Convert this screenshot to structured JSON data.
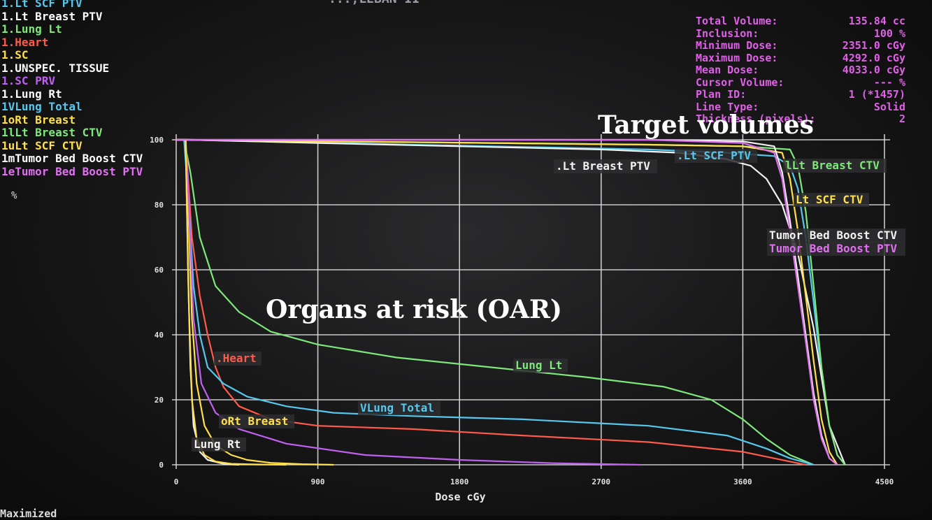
{
  "header": {
    "title_fragment": "...,LEBAN II"
  },
  "legend": {
    "items": [
      {
        "label": "1.Lt SCF PTV",
        "color": "#56c8ee"
      },
      {
        "label": "1.Lt Breast PTV",
        "color": "#ffffff"
      },
      {
        "label": "1.Lung Lt",
        "color": "#7ee87a"
      },
      {
        "label": "1.Heart",
        "color": "#ff5a4a"
      },
      {
        "label": "1.SC",
        "color": "#ffe04a"
      },
      {
        "label": "1.UNSPEC. TISSUE",
        "color": "#ffffff"
      },
      {
        "label": "1.SC PRV",
        "color": "#c060f0"
      },
      {
        "label": "1.Lung Rt",
        "color": "#ffffff"
      },
      {
        "label": "1VLung Total",
        "color": "#56c8ee"
      },
      {
        "label": "1oRt Breast",
        "color": "#ffe04a"
      },
      {
        "label": "1lLt Breast CTV",
        "color": "#7ee87a"
      },
      {
        "label": "1uLt SCF CTV",
        "color": "#ffe04a"
      },
      {
        "label": "1mTumor Bed Boost CTV",
        "color": "#ffffff"
      },
      {
        "label": "1eTumor Bed Boost PTV",
        "color": "#e070f0"
      }
    ]
  },
  "unit_symbol": "%",
  "info": {
    "rows": [
      {
        "key": "Total Volume:",
        "value": "135.84 cc"
      },
      {
        "key": "Inclusion:",
        "value": "100 %"
      },
      {
        "key": "Minimum Dose:",
        "value": "2351.0 cGy"
      },
      {
        "key": "Maximum Dose:",
        "value": "4292.0 cGy"
      },
      {
        "key": "Mean Dose:",
        "value": "4033.0 cGy"
      },
      {
        "key": "Cursor Volume:",
        "value": "--- %"
      },
      {
        "key": "Plan ID:",
        "value": "1 (*1457)"
      },
      {
        "key": "Line Type:",
        "value": "Solid"
      },
      {
        "key": "Thickness (pixels):",
        "value": "2"
      }
    ]
  },
  "overlays": {
    "target": "Target volumes",
    "oar": "Organs at risk (OAR)"
  },
  "status_text": "Maximized",
  "colors": {
    "grid": "#dcdcdc",
    "lt_scf_ptv": "#56c8ee",
    "lt_breast_ptv": "#f2f2f2",
    "lung_lt": "#7ee87a",
    "heart": "#ff5a4a",
    "sc": "#ffe04a",
    "sc_prv": "#c060f0",
    "lung_rt": "#f2f2f2",
    "lung_total": "#56c8ee",
    "rt_breast": "#ffe04a",
    "lt_breast_ctv": "#7ee87a",
    "lt_scf_ctv": "#ffe04a",
    "tbb_ctv": "#f2f2f2",
    "tbb_ptv": "#e070f0"
  },
  "chart_data": {
    "type": "line",
    "xlabel": "Dose cGy",
    "ylabel": "%",
    "xlim": [
      0,
      4500
    ],
    "ylim": [
      0,
      100
    ],
    "xticks": [
      0,
      900,
      1800,
      2700,
      3600,
      4500
    ],
    "yticks": [
      0,
      20,
      40,
      60,
      80,
      100
    ],
    "grid": true,
    "series": [
      {
        "name": "Lt SCF PTV",
        "label": ".Lt SCF PTV",
        "color": "#56c8ee",
        "x": [
          0,
          80,
          1000,
          2000,
          3000,
          3500,
          3800,
          3900,
          3950,
          4000,
          4050,
          4100,
          4150,
          4200,
          4250
        ],
        "y": [
          100,
          100,
          99,
          98,
          97,
          96,
          95,
          92,
          85,
          70,
          50,
          28,
          12,
          3,
          0
        ]
      },
      {
        "name": "Lt Breast PTV",
        "label": ".Lt Breast PTV",
        "color": "#f2f2f2",
        "x": [
          0,
          80,
          900,
          1800,
          2700,
          3200,
          3500,
          3650,
          3750,
          3850,
          3950,
          4050,
          4150,
          4250
        ],
        "y": [
          100,
          100,
          99,
          98,
          97,
          96,
          94,
          92,
          88,
          80,
          65,
          42,
          12,
          0
        ]
      },
      {
        "name": "Lung Lt",
        "label": "Lung Lt",
        "color": "#7ee87a",
        "x": [
          0,
          50,
          90,
          150,
          250,
          400,
          600,
          900,
          1400,
          2000,
          2600,
          3100,
          3400,
          3600,
          3750,
          3900,
          4050
        ],
        "y": [
          100,
          100,
          90,
          70,
          55,
          47,
          41,
          37,
          33,
          30,
          27,
          24,
          20,
          14,
          8,
          3,
          0
        ]
      },
      {
        "name": "Heart",
        "label": ".Heart",
        "color": "#ff5a4a",
        "x": [
          0,
          60,
          100,
          150,
          200,
          250,
          300,
          400,
          600,
          900,
          1500,
          2200,
          3000,
          3600,
          3900,
          4000
        ],
        "y": [
          100,
          100,
          70,
          52,
          40,
          30,
          24,
          18,
          14,
          12,
          11,
          9,
          7,
          4,
          1,
          0
        ]
      },
      {
        "name": "Lung Total",
        "label": "VLung Total",
        "color": "#56c8ee",
        "x": [
          0,
          50,
          80,
          110,
          150,
          200,
          300,
          450,
          700,
          1000,
          1500,
          2200,
          3000,
          3500,
          3750,
          3900,
          4050
        ],
        "y": [
          100,
          100,
          80,
          55,
          40,
          30,
          25,
          21,
          18,
          16,
          15,
          14,
          12,
          9,
          5,
          2,
          0
        ]
      },
      {
        "name": "Rt Breast",
        "label": "oRt Breast",
        "color": "#ffe04a",
        "x": [
          0,
          60,
          80,
          100,
          130,
          180,
          250,
          350,
          450,
          600,
          800,
          1000
        ],
        "y": [
          100,
          100,
          75,
          45,
          25,
          12,
          6,
          3,
          1.5,
          0.6,
          0.2,
          0
        ]
      },
      {
        "name": "SC PRV",
        "label": "",
        "color": "#c060f0",
        "x": [
          0,
          60,
          80,
          110,
          160,
          250,
          400,
          700,
          1200,
          1800,
          2400,
          2950
        ],
        "y": [
          100,
          100,
          80,
          45,
          25,
          16,
          11,
          6.5,
          3,
          1.5,
          0.5,
          0
        ]
      },
      {
        "name": "Lung Rt",
        "label": "Lung Rt",
        "color": "#f2f2f2",
        "x": [
          0,
          60,
          75,
          90,
          110,
          150,
          200,
          300,
          400
        ],
        "y": [
          100,
          100,
          60,
          30,
          12,
          4,
          1.5,
          0.3,
          0
        ]
      },
      {
        "name": "SC",
        "label": "",
        "color": "#ffe04a",
        "x": [
          0,
          60,
          80,
          100,
          130,
          180,
          250,
          350,
          500,
          700
        ],
        "y": [
          100,
          100,
          50,
          20,
          8,
          3,
          1,
          0.3,
          0.1,
          0
        ]
      },
      {
        "name": "Lt Breast CTV",
        "label": "lLt Breast CTV",
        "color": "#7ee87a",
        "x": [
          0,
          80,
          1000,
          2000,
          3000,
          3600,
          3900,
          3950,
          4000,
          4050,
          4100,
          4150,
          4200,
          4250
        ],
        "y": [
          100,
          100,
          99.5,
          99,
          98.5,
          98,
          97,
          92,
          78,
          55,
          30,
          12,
          3,
          0
        ]
      },
      {
        "name": "Lt SCF CTV",
        "label": "Lt SCF CTV",
        "color": "#ffe04a",
        "x": [
          0,
          80,
          1000,
          2000,
          3000,
          3600,
          3850,
          3900,
          3950,
          4000,
          4050,
          4100,
          4150,
          4200
        ],
        "y": [
          100,
          100,
          99.5,
          99,
          98.5,
          98,
          96,
          88,
          72,
          52,
          32,
          14,
          4,
          0
        ]
      },
      {
        "name": "Tumor Bed Boost CTV",
        "label": "Tumor Bed Boost CTV",
        "color": "#f2f2f2",
        "x": [
          0,
          80,
          1000,
          2000,
          3000,
          3600,
          3800,
          3850,
          3900,
          3950,
          4000,
          4050,
          4100,
          4150,
          4200
        ],
        "y": [
          100,
          100,
          100,
          100,
          100,
          99.5,
          98,
          90,
          75,
          58,
          40,
          22,
          9,
          2,
          0
        ]
      },
      {
        "name": "Tumor Bed Boost PTV",
        "label": "Tumor Bed Boost PTV",
        "color": "#e070f0",
        "x": [
          0,
          80,
          1000,
          2000,
          3000,
          3600,
          3800,
          3850,
          3900,
          3950,
          4000,
          4050,
          4100,
          4150,
          4200
        ],
        "y": [
          100,
          100,
          100,
          100,
          100,
          99,
          96,
          88,
          72,
          55,
          38,
          20,
          8,
          2,
          0
        ]
      }
    ]
  }
}
